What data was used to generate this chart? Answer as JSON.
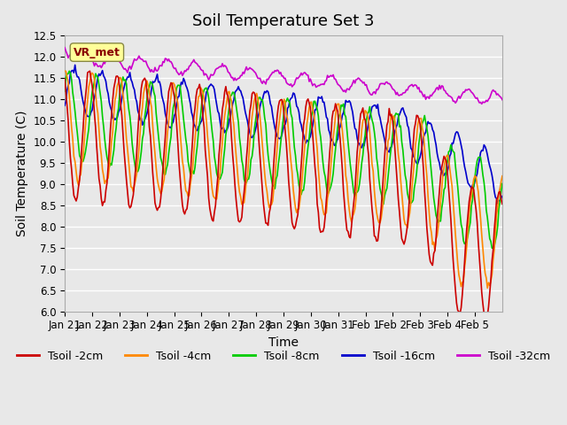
{
  "title": "Soil Temperature Set 3",
  "xlabel": "Time",
  "ylabel": "Soil Temperature (C)",
  "ylim": [
    6.0,
    12.5
  ],
  "yticks": [
    6.0,
    6.5,
    7.0,
    7.5,
    8.0,
    8.5,
    9.0,
    9.5,
    10.0,
    10.5,
    11.0,
    11.5,
    12.0,
    12.5
  ],
  "xtick_labels": [
    "Jan 21",
    "Jan 22",
    "Jan 23",
    "Jan 24",
    "Jan 25",
    "Jan 26",
    "Jan 27",
    "Jan 28",
    "Jan 29",
    "Jan 30",
    "Jan 31",
    "Feb 1",
    "Feb 2",
    "Feb 3",
    "Feb 4",
    "Feb 5"
  ],
  "line_colors": {
    "2cm": "#cc0000",
    "4cm": "#ff8800",
    "8cm": "#00cc00",
    "16cm": "#0000cc",
    "32cm": "#cc00cc"
  },
  "legend_labels": [
    "Tsoil -2cm",
    "Tsoil -4cm",
    "Tsoil -8cm",
    "Tsoil -16cm",
    "Tsoil -32cm"
  ],
  "vr_met_box_color": "#ffff99",
  "vr_met_text_color": "#880000",
  "background_color": "#e8e8e8",
  "grid_color": "#ffffff",
  "title_fontsize": 13,
  "axis_label_fontsize": 10,
  "tick_fontsize": 8.5,
  "legend_fontsize": 9
}
